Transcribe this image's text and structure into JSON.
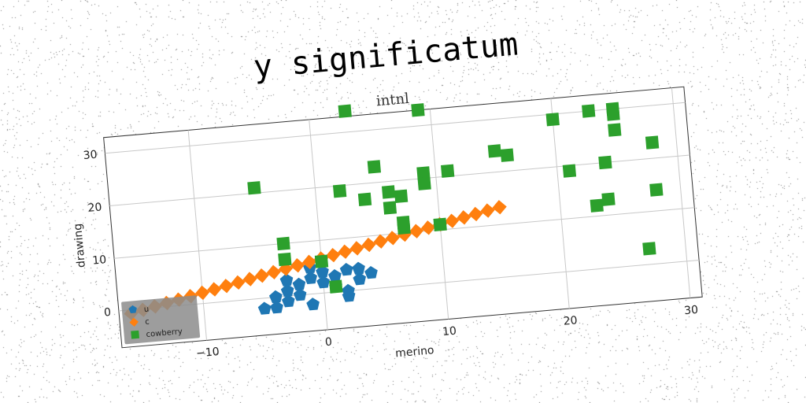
{
  "title": "y significatum",
  "chart_data": {
    "type": "scatter",
    "subtitle": "intnl",
    "xlabel": "merino",
    "ylabel": "drawing",
    "xlim": [
      -17,
      31
    ],
    "ylim": [
      -7,
      33
    ],
    "xticks": [
      -10,
      0,
      10,
      20,
      30
    ],
    "yticks": [
      0,
      10,
      20,
      30
    ],
    "xtick_labels": [
      "−10",
      "0",
      "10",
      "20",
      "30"
    ],
    "ytick_labels": [
      "0",
      "10",
      "20",
      "30"
    ],
    "grid": true,
    "legend_position": "lower-left",
    "series": [
      {
        "name": "u",
        "color": "#1f77b4",
        "marker": "pentagon",
        "points": [
          [
            -5,
            -2
          ],
          [
            -4,
            0
          ],
          [
            -4,
            -2
          ],
          [
            -3,
            1
          ],
          [
            -3,
            3
          ],
          [
            -2,
            2
          ],
          [
            -2,
            0
          ],
          [
            -1,
            3
          ],
          [
            -1,
            -2
          ],
          [
            0,
            2
          ],
          [
            0,
            4
          ],
          [
            1,
            1
          ],
          [
            1,
            3
          ],
          [
            2,
            0
          ],
          [
            2,
            4
          ],
          [
            3,
            2
          ],
          [
            3,
            4
          ],
          [
            4,
            3
          ],
          [
            -1,
            5
          ],
          [
            -3,
            -1
          ],
          [
            2,
            -1
          ]
        ]
      },
      {
        "name": "c",
        "color": "#ff7f0e",
        "marker": "diamond",
        "points": [
          [
            -16,
            -0.65
          ],
          [
            -15,
            -0.2
          ],
          [
            -14,
            0.25
          ],
          [
            -13,
            0.7
          ],
          [
            -12,
            1.15
          ],
          [
            -11,
            1.6
          ],
          [
            -10,
            2.05
          ],
          [
            -9,
            2.5
          ],
          [
            -8,
            2.95
          ],
          [
            -7,
            3.4
          ],
          [
            -6,
            3.85
          ],
          [
            -5,
            4.3
          ],
          [
            -4,
            4.75
          ],
          [
            -3,
            5.2
          ],
          [
            -2,
            5.65
          ],
          [
            -1,
            6.1
          ],
          [
            0,
            6.55
          ],
          [
            1,
            7.0
          ],
          [
            2,
            7.45
          ],
          [
            3,
            7.9
          ],
          [
            4,
            8.35
          ],
          [
            5,
            8.8
          ],
          [
            6,
            9.25
          ],
          [
            7,
            9.7
          ],
          [
            8,
            10.15
          ],
          [
            9,
            10.6
          ],
          [
            10,
            11.05
          ],
          [
            11,
            11.5
          ],
          [
            12,
            11.95
          ],
          [
            13,
            12.4
          ],
          [
            14,
            12.85
          ],
          [
            15,
            13.3
          ]
        ]
      },
      {
        "name": "cowberry",
        "color": "#2ca02c",
        "marker": "square",
        "points": [
          [
            -5,
            21
          ],
          [
            -3,
            10
          ],
          [
            -3,
            7
          ],
          [
            0,
            6
          ],
          [
            1,
            1
          ],
          [
            2,
            19
          ],
          [
            3,
            34
          ],
          [
            4,
            17
          ],
          [
            5,
            23
          ],
          [
            6,
            18
          ],
          [
            6,
            15
          ],
          [
            7,
            17
          ],
          [
            7,
            12
          ],
          [
            7,
            11
          ],
          [
            9,
            33
          ],
          [
            9,
            21
          ],
          [
            9,
            19
          ],
          [
            10,
            11
          ],
          [
            11,
            21
          ],
          [
            15,
            24
          ],
          [
            16,
            23
          ],
          [
            20,
            29
          ],
          [
            21,
            19
          ],
          [
            23,
            12
          ],
          [
            23,
            30
          ],
          [
            24,
            13
          ],
          [
            24,
            20
          ],
          [
            25,
            29
          ],
          [
            25,
            26
          ],
          [
            25,
            30
          ],
          [
            27,
            3
          ],
          [
            28,
            23
          ],
          [
            28,
            14
          ]
        ]
      }
    ]
  }
}
